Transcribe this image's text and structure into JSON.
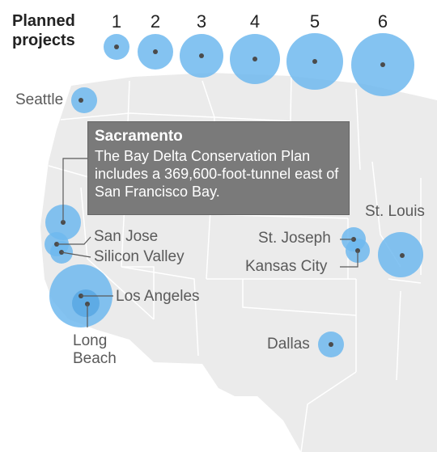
{
  "legend": {
    "title_line1": "Planned",
    "title_line2": "projects",
    "sizes": [
      "1",
      "2",
      "3",
      "4",
      "5",
      "6"
    ]
  },
  "callout": {
    "title": "Sacramento",
    "text": "The Bay Delta Conservation Plan includes a 369,600-foot-tunnel east of San Francisco Bay."
  },
  "cities": [
    {
      "name": "Seattle",
      "projects": 1
    },
    {
      "name": "Sacramento",
      "projects": 2
    },
    {
      "name": "San Jose",
      "projects": 1
    },
    {
      "name": "Silicon Valley",
      "projects": 1
    },
    {
      "name": "Los Angeles",
      "projects": 6
    },
    {
      "name": "Long Beach",
      "projects": 2
    },
    {
      "name": "St. Joseph",
      "projects": 1
    },
    {
      "name": "Kansas City",
      "projects": 1
    },
    {
      "name": "St. Louis",
      "projects": 4
    },
    {
      "name": "Dallas",
      "projects": 1
    }
  ],
  "labels": {
    "seattle": "Seattle",
    "san_jose": "San Jose",
    "silicon_valley": "Silicon Valley",
    "los_angeles": "Los Angeles",
    "long_beach_1": "Long",
    "long_beach_2": "Beach",
    "st_joseph": "St. Joseph",
    "kansas_city": "Kansas City",
    "st_louis": "St. Louis",
    "dallas": "Dallas"
  },
  "colors": {
    "bubble": "#6fb9ef",
    "bubble_stroke": "#5aa9e3",
    "dot": "#4b4b4b",
    "land": "#ebebeb",
    "border": "#ffffff",
    "callout_bg": "#7a7a7a"
  }
}
